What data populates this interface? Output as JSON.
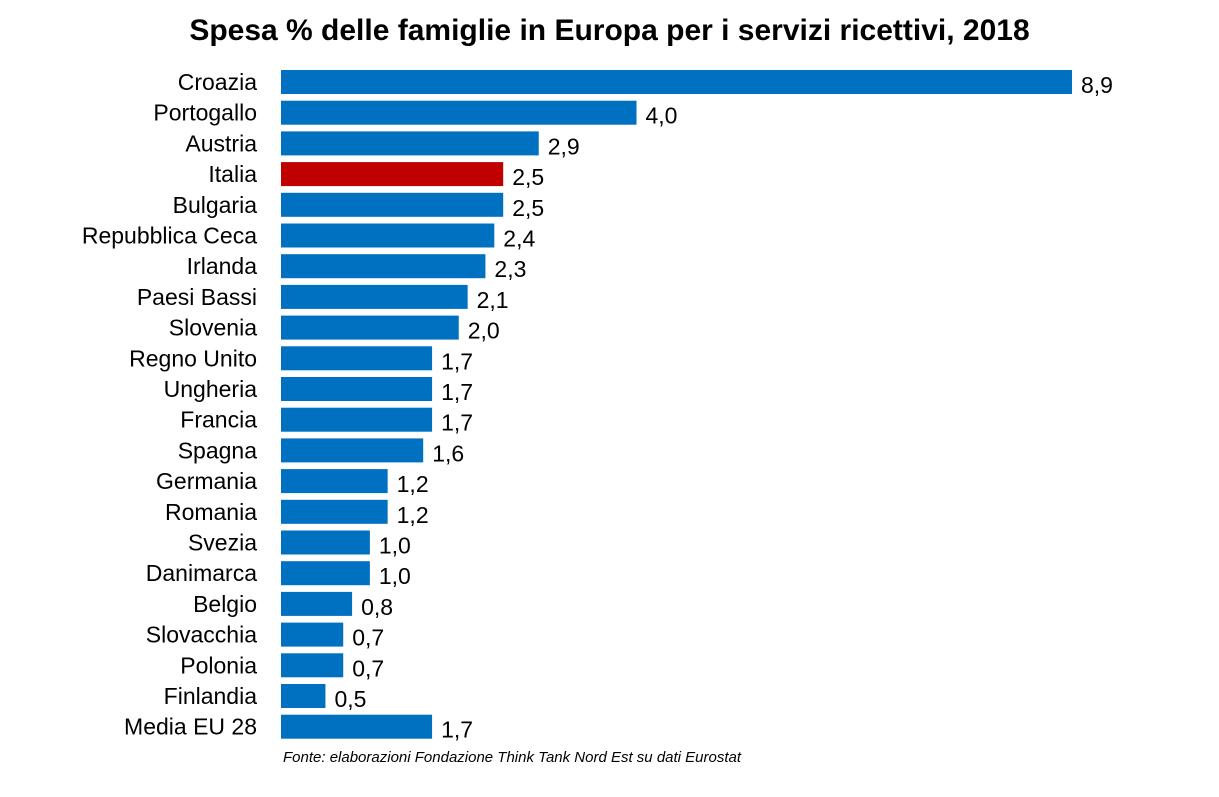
{
  "chart_data": {
    "type": "bar",
    "orientation": "horizontal",
    "title": "Spesa % delle famiglie in Europa per i servizi ricettivi, 2018",
    "source": "Fonte: elaborazioni Fondazione Think Tank Nord Est su dati Eurostat",
    "categories": [
      "Croazia",
      "Portogallo",
      "Austria",
      "Italia",
      "Bulgaria",
      "Repubblica Ceca",
      "Irlanda",
      "Paesi Bassi",
      "Slovenia",
      "Regno Unito",
      "Ungheria",
      "Francia",
      "Spagna",
      "Germania",
      "Romania",
      "Svezia",
      "Danimarca",
      "Belgio",
      "Slovacchia",
      "Polonia",
      "Finlandia",
      "Media EU 28"
    ],
    "values": [
      8.9,
      4.0,
      2.9,
      2.5,
      2.5,
      2.4,
      2.3,
      2.1,
      2.0,
      1.7,
      1.7,
      1.7,
      1.6,
      1.2,
      1.2,
      1.0,
      1.0,
      0.8,
      0.7,
      0.7,
      0.5,
      1.7
    ],
    "value_labels": [
      "8,9",
      "4,0",
      "2,9",
      "2,5",
      "2,5",
      "2,4",
      "2,3",
      "2,1",
      "2,0",
      "1,7",
      "1,7",
      "1,7",
      "1,6",
      "1,2",
      "1,2",
      "1,0",
      "1,0",
      "0,8",
      "0,7",
      "0,7",
      "0,5",
      "1,7"
    ],
    "xlim": [
      0,
      8.9
    ],
    "grid": false,
    "legend": "none",
    "colors": {
      "default": "#0070C0",
      "highlight": "#C00000"
    },
    "highlight_category": "Italia"
  }
}
